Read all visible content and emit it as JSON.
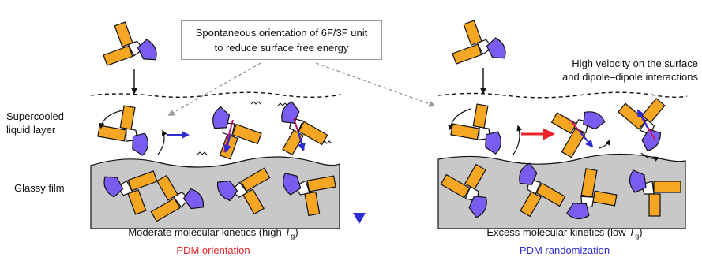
{
  "callout": {
    "line1": "Spontaneous orientation of 6F/3F unit",
    "line2": "to reduce surface free energy"
  },
  "left_panel": {
    "layer_label_line1": "Supercooled",
    "layer_label_line2": "liquid layer",
    "film_label": "Glassy film",
    "caption_main": "Moderate molecular kinetics (high",
    "caption_symbol": "T",
    "caption_subscript": "g",
    "caption_close": ")",
    "caption_highlight": "PDM orientation"
  },
  "right_panel": {
    "note_line1": "High velocity on the surface",
    "note_line2": "and dipole–dipole interactions",
    "caption_main": "Excess molecular kinetics (low",
    "caption_symbol": "T",
    "caption_subscript": "g",
    "caption_close": ")",
    "caption_highlight": "PDM randomization"
  },
  "colors": {
    "arm_orange": "#f5a623",
    "head_purple": "#7b5cf0",
    "film_gray": "#c8c8c8",
    "red_arrow": "#e8232a",
    "blue_arrow": "#2d2bd1",
    "magenta_dipole": "#c0166f"
  }
}
